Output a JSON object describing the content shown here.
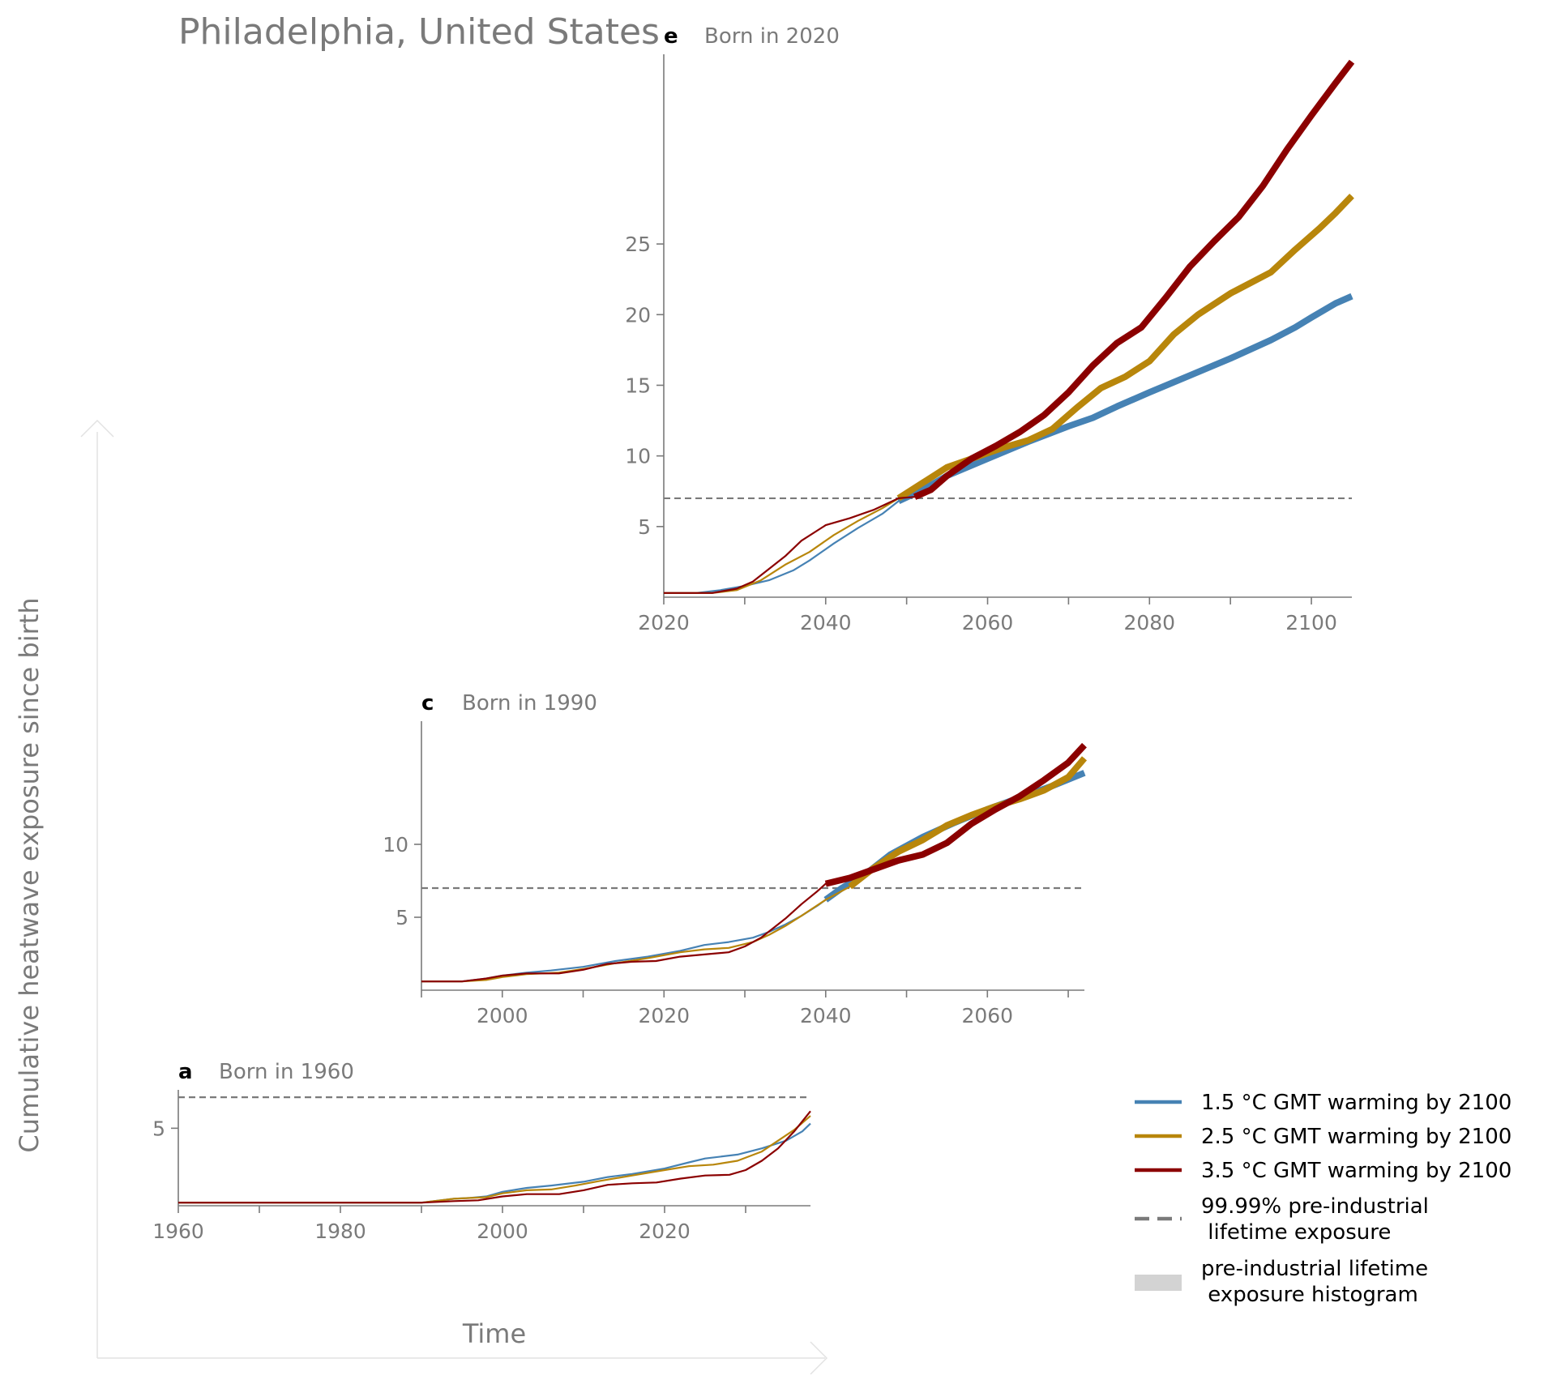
{
  "figure": {
    "title": "Philadelphia, United States",
    "ylabel": "Cumulative heatwave exposure since birth",
    "xlabel": "Time"
  },
  "colors": {
    "s15": "#4682b4",
    "s25": "#b8860b",
    "s35": "#8b0000",
    "threshold": "#7a7a7a",
    "axis": "#7a7a7a",
    "histogram": "#d3d3d3"
  },
  "legend": {
    "items": [
      {
        "label": "1.5 °C GMT warming by 2100",
        "kind": "line",
        "color": "#4682b4"
      },
      {
        "label": "2.5 °C GMT warming by 2100",
        "kind": "line",
        "color": "#b8860b"
      },
      {
        "label": "3.5 °C GMT warming by 2100",
        "kind": "line",
        "color": "#8b0000"
      },
      {
        "label": "99.99% pre-industrial\n lifetime exposure",
        "kind": "dash",
        "color": "#7a7a7a"
      },
      {
        "label": "pre-industrial lifetime\n exposure histogram",
        "kind": "patch",
        "color": "#d3d3d3"
      }
    ]
  },
  "chart_data": [
    {
      "id": "a",
      "type": "line",
      "letter": "a",
      "title": "Born in 1960",
      "xlim": [
        1960,
        2038
      ],
      "ylim": [
        0,
        8
      ],
      "xticks": [
        1960,
        1980,
        2000,
        2020
      ],
      "xminor": [
        1970,
        1990,
        2010,
        2030
      ],
      "yticks": [
        5
      ],
      "threshold": 7,
      "series": [
        {
          "key": "s15",
          "thick_from": null,
          "points": [
            [
              1960,
              0.2
            ],
            [
              1985,
              0.2
            ],
            [
              1990,
              0.2
            ],
            [
              1994,
              0.45
            ],
            [
              1996,
              0.5
            ],
            [
              1998,
              0.6
            ],
            [
              2000,
              0.9
            ],
            [
              2003,
              1.15
            ],
            [
              2006,
              1.3
            ],
            [
              2010,
              1.55
            ],
            [
              2013,
              1.85
            ],
            [
              2016,
              2.05
            ],
            [
              2020,
              2.4
            ],
            [
              2023,
              2.8
            ],
            [
              2025,
              3.05
            ],
            [
              2029,
              3.3
            ],
            [
              2032,
              3.7
            ],
            [
              2035,
              4.2
            ],
            [
              2037,
              4.8
            ],
            [
              2038,
              5.3
            ]
          ]
        },
        {
          "key": "s25",
          "thick_from": null,
          "points": [
            [
              1960,
              0.2
            ],
            [
              1985,
              0.2
            ],
            [
              1990,
              0.2
            ],
            [
              1994,
              0.45
            ],
            [
              1996,
              0.5
            ],
            [
              1998,
              0.55
            ],
            [
              2000,
              0.8
            ],
            [
              2003,
              1.0
            ],
            [
              2006,
              1.05
            ],
            [
              2009,
              1.3
            ],
            [
              2012,
              1.6
            ],
            [
              2016,
              1.95
            ],
            [
              2020,
              2.3
            ],
            [
              2023,
              2.55
            ],
            [
              2026,
              2.65
            ],
            [
              2029,
              2.9
            ],
            [
              2032,
              3.5
            ],
            [
              2034,
              4.2
            ],
            [
              2036,
              4.9
            ],
            [
              2038,
              5.8
            ]
          ]
        },
        {
          "key": "s35",
          "thick_from": null,
          "points": [
            [
              1960,
              0.2
            ],
            [
              1985,
              0.2
            ],
            [
              1990,
              0.2
            ],
            [
              1994,
              0.3
            ],
            [
              1997,
              0.35
            ],
            [
              2000,
              0.6
            ],
            [
              2003,
              0.75
            ],
            [
              2007,
              0.75
            ],
            [
              2010,
              1.0
            ],
            [
              2013,
              1.35
            ],
            [
              2016,
              1.45
            ],
            [
              2019,
              1.5
            ],
            [
              2022,
              1.75
            ],
            [
              2025,
              1.95
            ],
            [
              2028,
              2.0
            ],
            [
              2030,
              2.3
            ],
            [
              2032,
              2.9
            ],
            [
              2034,
              3.7
            ],
            [
              2036,
              4.8
            ],
            [
              2038,
              6.1
            ]
          ]
        }
      ]
    },
    {
      "id": "c",
      "type": "line",
      "letter": "c",
      "title": "Born in 1990",
      "xlim": [
        1990,
        2072
      ],
      "ylim": [
        0,
        19
      ],
      "xticks": [
        2000,
        2020,
        2040,
        2060
      ],
      "xminor": [
        1990,
        2010,
        2030,
        2050,
        2070
      ],
      "yticks": [
        5,
        10
      ],
      "threshold": 7,
      "series": [
        {
          "key": "s15",
          "thick_from": 2040,
          "points": [
            [
              1990,
              0.6
            ],
            [
              1995,
              0.6
            ],
            [
              1998,
              0.8
            ],
            [
              2000,
              1.0
            ],
            [
              2003,
              1.2
            ],
            [
              2006,
              1.35
            ],
            [
              2010,
              1.6
            ],
            [
              2014,
              2.0
            ],
            [
              2018,
              2.3
            ],
            [
              2022,
              2.7
            ],
            [
              2025,
              3.1
            ],
            [
              2028,
              3.3
            ],
            [
              2031,
              3.6
            ],
            [
              2033,
              4.0
            ],
            [
              2035,
              4.5
            ],
            [
              2037,
              5.1
            ],
            [
              2039,
              5.8
            ],
            [
              2040,
              6.2
            ],
            [
              2042,
              7.0
            ],
            [
              2045,
              8.0
            ],
            [
              2048,
              9.3
            ],
            [
              2052,
              10.5
            ],
            [
              2056,
              11.5
            ],
            [
              2060,
              12.4
            ],
            [
              2064,
              13.2
            ],
            [
              2068,
              14.0
            ],
            [
              2072,
              14.9
            ]
          ]
        },
        {
          "key": "s25",
          "thick_from": 2043,
          "points": [
            [
              1990,
              0.6
            ],
            [
              1995,
              0.6
            ],
            [
              1998,
              0.7
            ],
            [
              2000,
              0.9
            ],
            [
              2003,
              1.1
            ],
            [
              2007,
              1.2
            ],
            [
              2010,
              1.45
            ],
            [
              2014,
              1.85
            ],
            [
              2018,
              2.2
            ],
            [
              2022,
              2.6
            ],
            [
              2025,
              2.8
            ],
            [
              2028,
              2.9
            ],
            [
              2031,
              3.3
            ],
            [
              2033,
              3.8
            ],
            [
              2035,
              4.4
            ],
            [
              2037,
              5.1
            ],
            [
              2040,
              6.2
            ],
            [
              2043,
              7.1
            ],
            [
              2046,
              8.4
            ],
            [
              2049,
              9.5
            ],
            [
              2052,
              10.3
            ],
            [
              2055,
              11.3
            ],
            [
              2058,
              12.0
            ],
            [
              2061,
              12.6
            ],
            [
              2064,
              13.1
            ],
            [
              2067,
              13.7
            ],
            [
              2070,
              14.6
            ],
            [
              2072,
              15.9
            ]
          ]
        },
        {
          "key": "s35",
          "thick_from": 2040,
          "points": [
            [
              1990,
              0.6
            ],
            [
              1995,
              0.6
            ],
            [
              1998,
              0.8
            ],
            [
              2000,
              1.0
            ],
            [
              2003,
              1.15
            ],
            [
              2007,
              1.15
            ],
            [
              2010,
              1.4
            ],
            [
              2013,
              1.8
            ],
            [
              2016,
              1.95
            ],
            [
              2019,
              2.0
            ],
            [
              2022,
              2.3
            ],
            [
              2025,
              2.45
            ],
            [
              2028,
              2.6
            ],
            [
              2030,
              3.0
            ],
            [
              2032,
              3.6
            ],
            [
              2035,
              4.9
            ],
            [
              2037,
              5.9
            ],
            [
              2039,
              6.8
            ],
            [
              2040,
              7.3
            ],
            [
              2043,
              7.7
            ],
            [
              2046,
              8.3
            ],
            [
              2049,
              8.9
            ],
            [
              2052,
              9.3
            ],
            [
              2055,
              10.1
            ],
            [
              2058,
              11.4
            ],
            [
              2061,
              12.4
            ],
            [
              2064,
              13.3
            ],
            [
              2067,
              14.4
            ],
            [
              2070,
              15.6
            ],
            [
              2072,
              16.8
            ]
          ]
        }
      ]
    },
    {
      "id": "e",
      "type": "line",
      "letter": "e",
      "title": "Born in 2020",
      "xlim": [
        2020,
        2105
      ],
      "ylim": [
        0,
        39
      ],
      "xticks": [
        2020,
        2040,
        2060,
        2080,
        2100
      ],
      "xminor": [
        2030,
        2050,
        2070,
        2090
      ],
      "yticks": [
        5,
        10,
        15,
        20,
        25
      ],
      "threshold": 7,
      "series": [
        {
          "key": "s15",
          "thick_from": 2049,
          "points": [
            [
              2020,
              0.3
            ],
            [
              2024,
              0.3
            ],
            [
              2027,
              0.5
            ],
            [
              2030,
              0.8
            ],
            [
              2033,
              1.2
            ],
            [
              2036,
              1.9
            ],
            [
              2038,
              2.6
            ],
            [
              2041,
              3.8
            ],
            [
              2044,
              4.9
            ],
            [
              2047,
              5.9
            ],
            [
              2049,
              6.8
            ],
            [
              2052,
              7.6
            ],
            [
              2055,
              8.6
            ],
            [
              2060,
              9.8
            ],
            [
              2065,
              11.0
            ],
            [
              2070,
              12.1
            ],
            [
              2073,
              12.7
            ],
            [
              2076,
              13.5
            ],
            [
              2080,
              14.5
            ],
            [
              2085,
              15.7
            ],
            [
              2090,
              16.9
            ],
            [
              2095,
              18.2
            ],
            [
              2098,
              19.1
            ],
            [
              2100,
              19.8
            ],
            [
              2103,
              20.8
            ],
            [
              2105,
              21.3
            ]
          ]
        },
        {
          "key": "s25",
          "thick_from": 2049,
          "points": [
            [
              2020,
              0.3
            ],
            [
              2026,
              0.3
            ],
            [
              2029,
              0.5
            ],
            [
              2032,
              1.2
            ],
            [
              2035,
              2.3
            ],
            [
              2038,
              3.2
            ],
            [
              2041,
              4.4
            ],
            [
              2044,
              5.4
            ],
            [
              2047,
              6.3
            ],
            [
              2049,
              7.0
            ],
            [
              2052,
              8.1
            ],
            [
              2055,
              9.2
            ],
            [
              2058,
              9.8
            ],
            [
              2062,
              10.6
            ],
            [
              2065,
              11.1
            ],
            [
              2068,
              11.9
            ],
            [
              2071,
              13.4
            ],
            [
              2074,
              14.8
            ],
            [
              2077,
              15.6
            ],
            [
              2080,
              16.7
            ],
            [
              2083,
              18.6
            ],
            [
              2086,
              20.0
            ],
            [
              2090,
              21.5
            ],
            [
              2095,
              23.0
            ],
            [
              2098,
              24.6
            ],
            [
              2101,
              26.1
            ],
            [
              2103,
              27.2
            ],
            [
              2105,
              28.4
            ]
          ]
        },
        {
          "key": "s35",
          "thick_from": 2051,
          "points": [
            [
              2020,
              0.3
            ],
            [
              2026,
              0.3
            ],
            [
              2029,
              0.6
            ],
            [
              2031,
              1.1
            ],
            [
              2033,
              2.0
            ],
            [
              2035,
              2.9
            ],
            [
              2037,
              4.0
            ],
            [
              2040,
              5.1
            ],
            [
              2043,
              5.6
            ],
            [
              2046,
              6.2
            ],
            [
              2049,
              7.0
            ],
            [
              2051,
              7.1
            ],
            [
              2053,
              7.6
            ],
            [
              2055,
              8.6
            ],
            [
              2058,
              9.8
            ],
            [
              2061,
              10.7
            ],
            [
              2064,
              11.7
            ],
            [
              2067,
              12.9
            ],
            [
              2070,
              14.5
            ],
            [
              2073,
              16.4
            ],
            [
              2076,
              18.0
            ],
            [
              2079,
              19.1
            ],
            [
              2082,
              21.2
            ],
            [
              2085,
              23.4
            ],
            [
              2088,
              25.2
            ],
            [
              2091,
              26.9
            ],
            [
              2094,
              29.1
            ],
            [
              2097,
              31.7
            ],
            [
              2100,
              34.1
            ],
            [
              2103,
              36.4
            ],
            [
              2105,
              37.9
            ]
          ]
        }
      ]
    }
  ]
}
